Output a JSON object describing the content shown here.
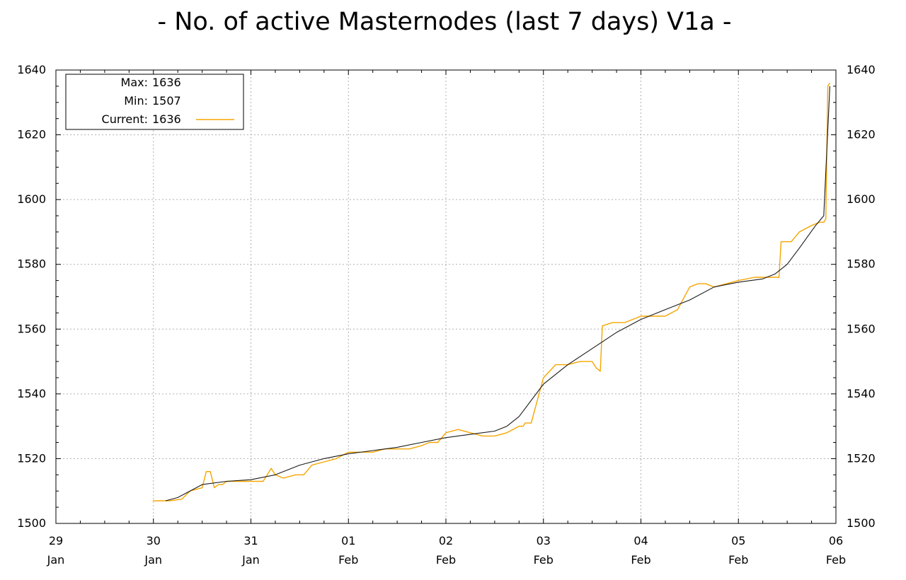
{
  "chart_data": {
    "type": "line",
    "title": "- No. of active Masternodes (last 7 days) V1a -",
    "xlabel": "",
    "ylabel": "",
    "ylim": [
      1500,
      1640
    ],
    "yticks": [
      1500,
      1520,
      1540,
      1560,
      1580,
      1600,
      1620,
      1640
    ],
    "xlim": [
      "2018-01-29 00:00",
      "2018-02-06 00:00"
    ],
    "xtick_labels": [
      {
        "day": "29",
        "month": "Jan"
      },
      {
        "day": "30",
        "month": "Jan"
      },
      {
        "day": "31",
        "month": "Jan"
      },
      {
        "day": "01",
        "month": "Feb"
      },
      {
        "day": "02",
        "month": "Feb"
      },
      {
        "day": "03",
        "month": "Feb"
      },
      {
        "day": "04",
        "month": "Feb"
      },
      {
        "day": "05",
        "month": "Feb"
      },
      {
        "day": "06",
        "month": "Feb"
      }
    ],
    "grid": true,
    "legend": {
      "position": "top-left",
      "entries": [
        {
          "label": "Max:",
          "value": "1636"
        },
        {
          "label": "Min:",
          "value": "1507"
        },
        {
          "label": "Current:",
          "value": "1636",
          "series": 0
        }
      ]
    },
    "series": [
      {
        "color": "#f5a500",
        "x": [
          "2018-01-29 23:50",
          "2018-01-30 04:00",
          "2018-01-30 07:00",
          "2018-01-30 09:00",
          "2018-01-30 12:00",
          "2018-01-30 13:00",
          "2018-01-30 14:00",
          "2018-01-30 15:00",
          "2018-01-30 16:00",
          "2018-01-30 17:00",
          "2018-01-30 18:00",
          "2018-01-30 21:00",
          "2018-01-31 00:00",
          "2018-01-31 03:00",
          "2018-01-31 05:00",
          "2018-01-31 06:00",
          "2018-01-31 08:00",
          "2018-01-31 11:00",
          "2018-01-31 13:00",
          "2018-01-31 15:00",
          "2018-01-31 18:00",
          "2018-01-31 21:00",
          "2018-02-01 00:00",
          "2018-02-01 03:00",
          "2018-02-01 06:00",
          "2018-02-01 09:00",
          "2018-02-01 12:00",
          "2018-02-01 15:00",
          "2018-02-01 18:00",
          "2018-02-01 20:00",
          "2018-02-01 22:00",
          "2018-02-02 00:00",
          "2018-02-02 03:00",
          "2018-02-02 06:00",
          "2018-02-02 09:00",
          "2018-02-02 12:00",
          "2018-02-02 15:00",
          "2018-02-02 18:00",
          "2018-02-02 19:00",
          "2018-02-02 19:30",
          "2018-02-02 21:00",
          "2018-02-03 00:00",
          "2018-02-03 03:00",
          "2018-02-03 06:00",
          "2018-02-03 09:00",
          "2018-02-03 12:00",
          "2018-02-03 13:00",
          "2018-02-03 14:00",
          "2018-02-03 14:30",
          "2018-02-03 17:00",
          "2018-02-03 20:00",
          "2018-02-04 00:00",
          "2018-02-04 03:00",
          "2018-02-04 06:00",
          "2018-02-04 09:00",
          "2018-02-04 12:00",
          "2018-02-04 14:00",
          "2018-02-04 16:00",
          "2018-02-04 18:00",
          "2018-02-04 21:00",
          "2018-02-05 00:00",
          "2018-02-05 04:00",
          "2018-02-05 08:00",
          "2018-02-05 10:00",
          "2018-02-05 10:30",
          "2018-02-05 13:00",
          "2018-02-05 15:00",
          "2018-02-05 18:00",
          "2018-02-05 20:00",
          "2018-02-05 21:00",
          "2018-02-05 21:30",
          "2018-02-05 22:00",
          "2018-02-05 22:30"
        ],
        "y": [
          1507,
          1507,
          1507.5,
          1510,
          1511,
          1516,
          1516,
          1511,
          1512,
          1512,
          1513,
          1513,
          1513,
          1513,
          1517,
          1515,
          1514,
          1515,
          1515,
          1518,
          1519,
          1520,
          1522,
          1522,
          1522,
          1523,
          1523,
          1523,
          1524,
          1525,
          1525,
          1528,
          1529,
          1528,
          1527,
          1527,
          1528,
          1530,
          1530,
          1531,
          1531,
          1545,
          1549,
          1549,
          1550,
          1550,
          1548,
          1547,
          1561,
          1562,
          1562,
          1564,
          1564,
          1564,
          1566,
          1573,
          1574,
          1574,
          1573,
          1574,
          1575,
          1576,
          1576,
          1576,
          1587,
          1587,
          1590,
          1592,
          1593,
          1593,
          1594,
          1635,
          1636
        ]
      },
      {
        "color": "#1a1a1a",
        "x": [
          "2018-01-30 03:00",
          "2018-01-30 06:00",
          "2018-01-30 12:00",
          "2018-01-30 18:00",
          "2018-01-31 00:00",
          "2018-01-31 06:00",
          "2018-01-31 12:00",
          "2018-01-31 18:00",
          "2018-02-01 00:00",
          "2018-02-01 06:00",
          "2018-02-01 12:00",
          "2018-02-01 18:00",
          "2018-02-02 00:00",
          "2018-02-02 06:00",
          "2018-02-02 12:00",
          "2018-02-02 15:00",
          "2018-02-02 18:00",
          "2018-02-03 00:00",
          "2018-02-03 06:00",
          "2018-02-03 12:00",
          "2018-02-03 18:00",
          "2018-02-04 00:00",
          "2018-02-04 06:00",
          "2018-02-04 12:00",
          "2018-02-04 18:00",
          "2018-02-05 00:00",
          "2018-02-05 06:00",
          "2018-02-05 09:00",
          "2018-02-05 12:00",
          "2018-02-05 15:00",
          "2018-02-05 19:00",
          "2018-02-05 21:00",
          "2018-02-05 22:30"
        ],
        "y": [
          1507,
          1508,
          1512,
          1513,
          1513.5,
          1515,
          1518,
          1520,
          1521.5,
          1522.5,
          1523.5,
          1525,
          1526.5,
          1527.5,
          1528.5,
          1530,
          1533,
          1543,
          1549,
          1554,
          1559,
          1563,
          1566,
          1569,
          1573,
          1574.5,
          1575.5,
          1577,
          1580,
          1585,
          1592,
          1595,
          1635
        ]
      }
    ]
  }
}
